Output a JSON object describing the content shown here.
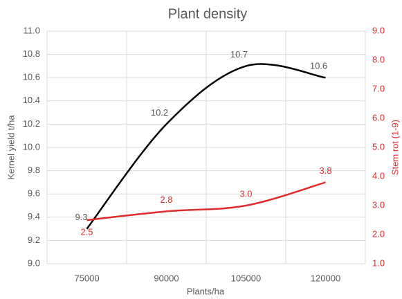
{
  "chart_data": {
    "type": "line",
    "title": "Plant density",
    "x_label": "Plants/ha",
    "y_label": "Kernel yield t/ha",
    "y2_label": "Stem rot (1-9)",
    "categories": [
      "75000",
      "90000",
      "105000",
      "120000"
    ],
    "series": [
      {
        "name": "Kernel yield t/ha",
        "color": "#000000",
        "values": [
          9.3,
          10.2,
          10.7,
          10.6
        ]
      },
      {
        "name": "Stem rot (1-9)",
        "color": "#e02b2b",
        "axis": "y2",
        "values": [
          2.5,
          2.8,
          3.0,
          3.8
        ],
        "value_labels": [
          "2.5",
          "2.8",
          "3.0",
          "3.8"
        ]
      }
    ],
    "ylim": [
      9,
      11
    ],
    "yticks": [
      {
        "value": 9,
        "label": "9.0"
      },
      9.2,
      9.4,
      9.6,
      9.8,
      {
        "value": 10,
        "label": "10.0"
      },
      10.2,
      10.4,
      10.6,
      10.8,
      {
        "value": 11,
        "label": "11.0"
      }
    ],
    "y2lim": [
      1,
      9
    ],
    "y2ticks": [
      {
        "value": 1,
        "label": "1.0"
      },
      {
        "value": 2,
        "label": "2.0"
      },
      {
        "value": 3,
        "label": "3.0"
      },
      {
        "value": 4,
        "label": "4.0"
      },
      {
        "value": 5,
        "label": "5.0"
      },
      {
        "value": 6,
        "label": "6.0"
      },
      {
        "value": 7,
        "label": "7.0"
      },
      {
        "value": 8,
        "label": "8.0"
      },
      {
        "value": 9,
        "label": "9.0"
      }
    ],
    "grid": true,
    "smooth": true
  }
}
